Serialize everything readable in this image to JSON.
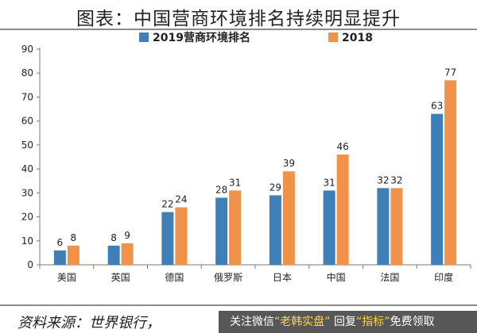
{
  "title": "图表：中国营商环境排名持续明显提升",
  "source_text": "资料来源：世界银行，",
  "overlay": {
    "prefix": "关注微信",
    "account": "“老韩实盘”",
    "middle": "回复",
    "keyword": "“指标”",
    "suffix": "免费领取"
  },
  "colors": {
    "series_2019": "#3f7fb8",
    "series_2018": "#f0924a",
    "axis": "#7a7a7a",
    "rule": "#8a8a8a"
  },
  "chart_data": {
    "type": "bar",
    "categories": [
      "美国",
      "英国",
      "德国",
      "俄罗斯",
      "日本",
      "中国",
      "法国",
      "印度"
    ],
    "series": [
      {
        "name": "2019营商环境排名",
        "values": [
          6,
          8,
          22,
          28,
          29,
          31,
          32,
          63
        ]
      },
      {
        "name": "2018",
        "values": [
          8,
          9,
          24,
          31,
          39,
          46,
          32,
          77
        ]
      }
    ],
    "ylim": [
      0,
      90
    ],
    "yticks": [
      0,
      10,
      20,
      30,
      40,
      50,
      60,
      70,
      80,
      90
    ],
    "grid": false,
    "legend_position": "top"
  }
}
